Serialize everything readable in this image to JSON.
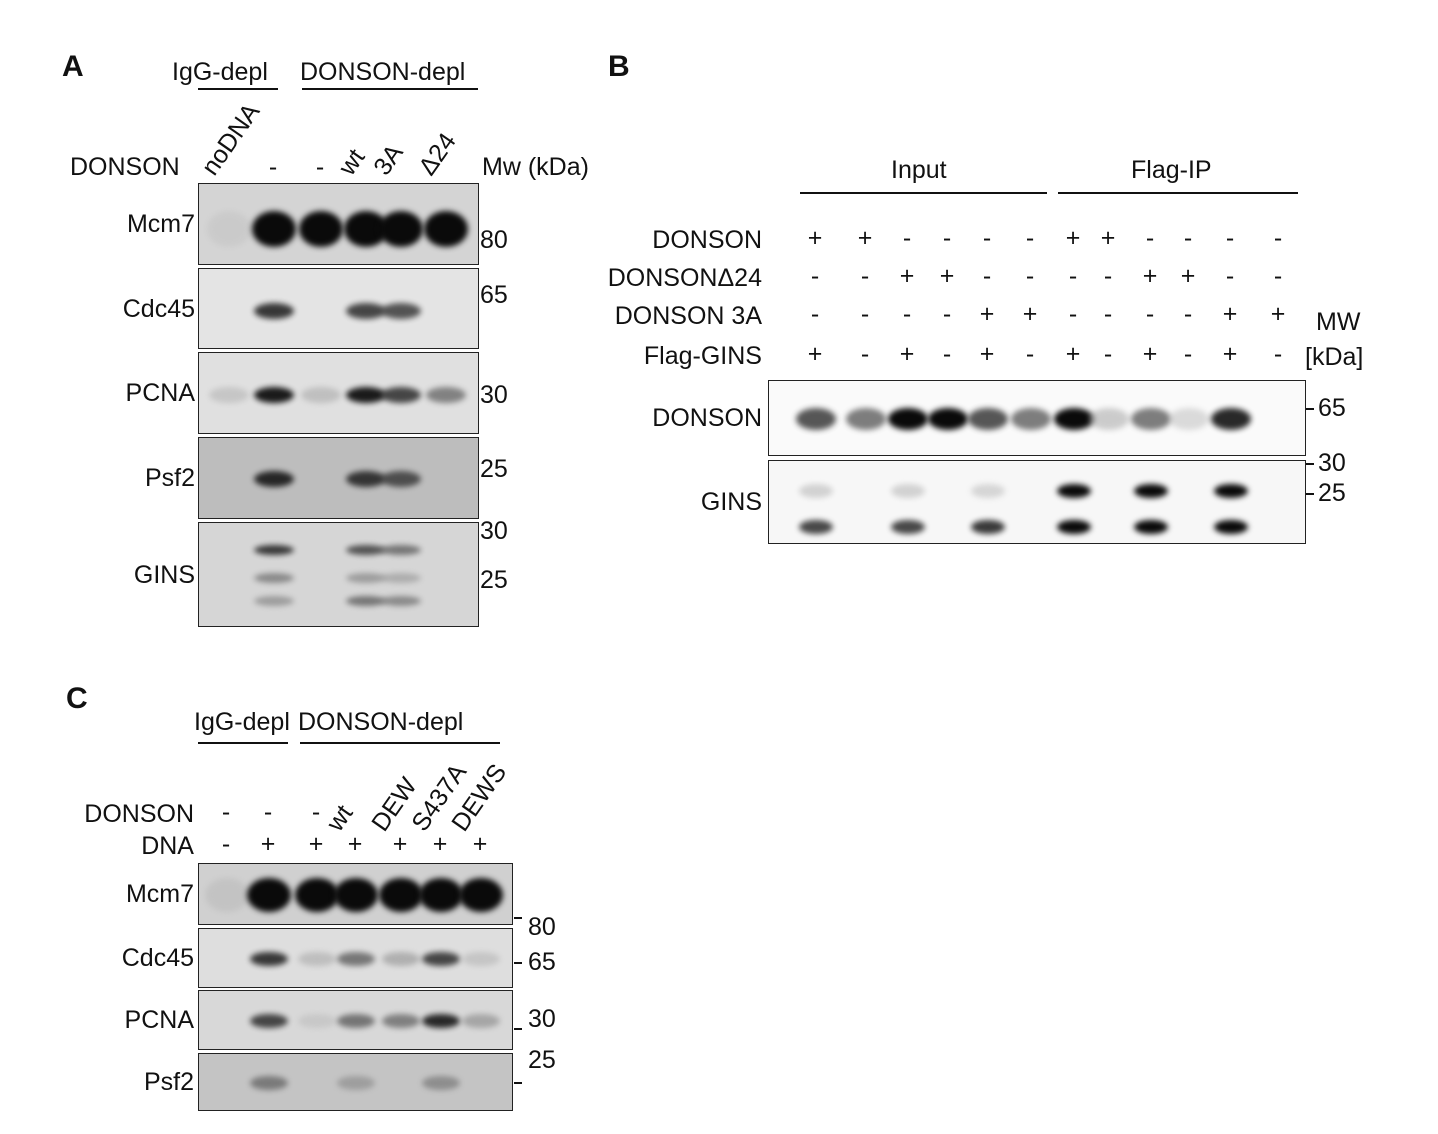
{
  "panelA": {
    "label": "A",
    "groups": [
      "IgG-depl",
      "DONSON-depl"
    ],
    "row_label": "DONSON",
    "lanes": [
      "noDNA",
      "-",
      "-",
      "wt",
      "3A",
      "Δ24"
    ],
    "mw_title": "Mw (kDa)",
    "blots": [
      {
        "name": "Mcm7",
        "bands": [
          [
            0.05,
            1,
            1,
            1,
            1,
            1
          ]
        ]
      },
      {
        "name": "Cdc45",
        "bands": [
          [
            0,
            0.85,
            0,
            0.8,
            0.75,
            0
          ]
        ]
      },
      {
        "name": "PCNA",
        "bands": [
          [
            0.15,
            0.95,
            0.2,
            0.95,
            0.8,
            0.55
          ]
        ]
      },
      {
        "name": "Psf2",
        "bands": [
          [
            0,
            0.9,
            0,
            0.85,
            0.75,
            0
          ]
        ]
      },
      {
        "name": "GINS",
        "bands": [
          [
            0,
            0.85,
            0,
            0.75,
            0.6,
            0
          ],
          [
            0,
            0.5,
            0,
            0.4,
            0.3,
            0
          ],
          [
            0,
            0.4,
            0,
            0.6,
            0.5,
            0
          ]
        ]
      }
    ],
    "mw": [
      "80",
      "65",
      "30",
      "25",
      "30",
      "25"
    ]
  },
  "panelB": {
    "label": "B",
    "groups": [
      "Input",
      "Flag-IP"
    ],
    "rows": [
      {
        "name": "DONSON",
        "values": [
          "+",
          "+",
          "-",
          "-",
          "-",
          "-",
          "+",
          "+",
          "-",
          "-",
          "-",
          "-"
        ]
      },
      {
        "name": "DONSONΔ24",
        "values": [
          "-",
          "-",
          "+",
          "+",
          "-",
          "-",
          "-",
          "-",
          "+",
          "+",
          "-",
          "-"
        ]
      },
      {
        "name": "DONSON 3A",
        "values": [
          "-",
          "-",
          "-",
          "-",
          "+",
          "+",
          "-",
          "-",
          "-",
          "-",
          "+",
          "+"
        ]
      },
      {
        "name": "Flag-GINS",
        "values": [
          "+",
          "-",
          "+",
          "-",
          "+",
          "-",
          "+",
          "-",
          "+",
          "-",
          "+",
          "-"
        ]
      }
    ],
    "mw_title": [
      "MW",
      "[kDa]"
    ],
    "blots": [
      {
        "name": "DONSON",
        "bands": [
          [
            0.75,
            0.6,
            1,
            1,
            0.75,
            0.6,
            1,
            0.2,
            0.6,
            0.1,
            0.9,
            0
          ]
        ]
      },
      {
        "name": "GINS",
        "bands": [
          [
            0.15,
            0,
            0.15,
            0,
            0.12,
            0,
            1,
            0,
            1,
            0,
            1,
            0
          ],
          [
            0.8,
            0,
            0.8,
            0,
            0.85,
            0,
            1,
            0,
            1,
            0,
            1,
            0
          ]
        ]
      }
    ],
    "mw": [
      "65",
      "30",
      "25"
    ]
  },
  "panelC": {
    "label": "C",
    "groups": [
      "IgG-depl",
      "DONSON-depl"
    ],
    "rows": [
      {
        "name": "DONSON",
        "values": [
          "-",
          "-",
          "-",
          "wt",
          "DEW",
          "S437A",
          "DEWS"
        ]
      },
      {
        "name": "DNA",
        "values": [
          "-",
          "+",
          "+",
          "+",
          "+",
          "+",
          "+"
        ]
      }
    ],
    "blots": [
      {
        "name": "Mcm7",
        "bands": [
          [
            0.1,
            1,
            1,
            1,
            1,
            1,
            1
          ]
        ]
      },
      {
        "name": "Cdc45",
        "bands": [
          [
            0,
            0.85,
            0.2,
            0.6,
            0.3,
            0.8,
            0.15
          ]
        ]
      },
      {
        "name": "PCNA",
        "bands": [
          [
            0,
            0.8,
            0.1,
            0.6,
            0.55,
            0.9,
            0.35
          ]
        ]
      },
      {
        "name": "Psf2",
        "bands": [
          [
            0,
            0.55,
            0,
            0.35,
            0,
            0.45,
            0
          ]
        ]
      }
    ],
    "mw": [
      "80",
      "65",
      "30",
      "25"
    ]
  }
}
